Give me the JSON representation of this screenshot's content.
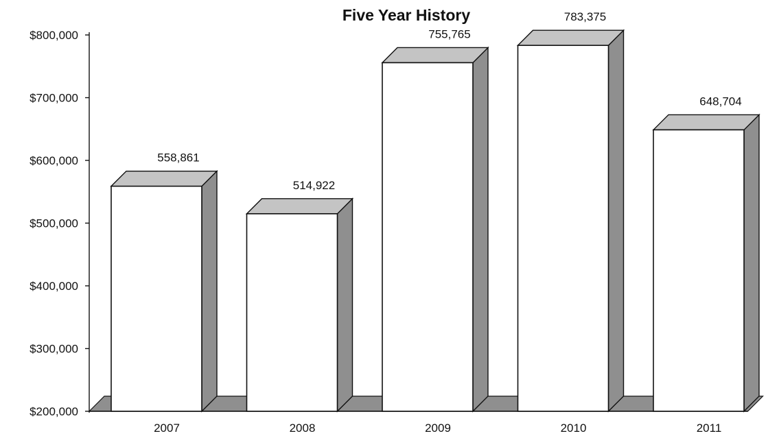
{
  "chart_data": {
    "type": "bar",
    "title": "Five Year History",
    "categories": [
      "2007",
      "2008",
      "2009",
      "2010",
      "2011"
    ],
    "values": [
      558861,
      514922,
      755765,
      783375,
      648704
    ],
    "data_labels": [
      "558,861",
      "514,922",
      "755,765",
      "783,375",
      "648,704"
    ],
    "ylim": [
      200000,
      800000
    ],
    "yticks": [
      200000,
      300000,
      400000,
      500000,
      600000,
      700000,
      800000
    ],
    "ytick_labels": [
      "$200,000",
      "$300,000",
      "$400,000",
      "$500,000",
      "$600,000",
      "$700,000",
      "$800,000"
    ],
    "style": "3d-bar",
    "grid": false,
    "legend": "none",
    "colors": {
      "front": "#ffffff",
      "top": "#c4c4c4",
      "side": "#8f8f8f"
    }
  }
}
